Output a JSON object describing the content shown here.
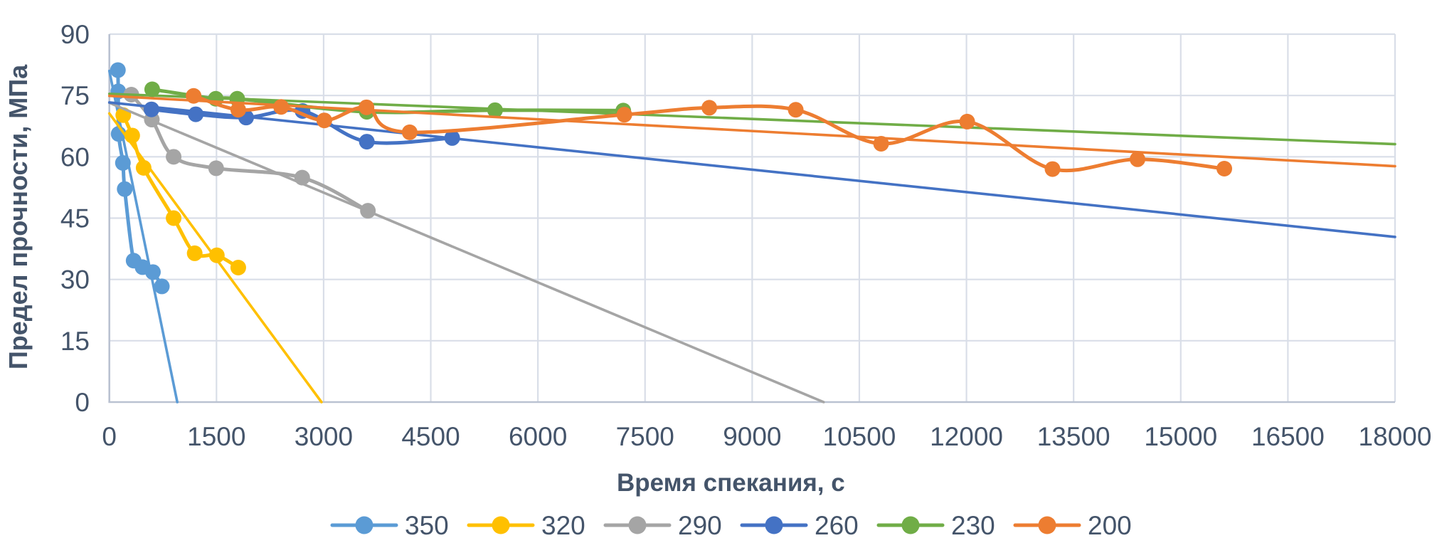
{
  "chart_data": {
    "type": "scatter",
    "title": "",
    "xlabel": "Время спекания, с",
    "ylabel": "Предел прочности, МПа",
    "xlim": [
      0,
      18000
    ],
    "ylim": [
      0,
      90
    ],
    "x_ticks": [
      0,
      1500,
      3000,
      4500,
      6000,
      7500,
      9000,
      10500,
      12000,
      13500,
      15000,
      16500,
      18000
    ],
    "y_ticks": [
      0,
      15,
      30,
      45,
      60,
      75,
      90
    ],
    "grid": true,
    "legend_position": "bottom",
    "marker_style": "circle",
    "line_style": "smooth-with-markers-plus-linear-trendline",
    "series": [
      {
        "name": "350",
        "color": "#5B9BD5",
        "points": [
          [
            120,
            81.2
          ],
          [
            125,
            76.0
          ],
          [
            130,
            65.6
          ],
          [
            190,
            58.5
          ],
          [
            215,
            52.1
          ],
          [
            340,
            34.6
          ],
          [
            465,
            33.0
          ],
          [
            610,
            31.8
          ],
          [
            735,
            28.3
          ]
        ],
        "trendline": [
          [
            0,
            81.0
          ],
          [
            951,
            0
          ]
        ]
      },
      {
        "name": "320",
        "color": "#FFC000",
        "points": [
          [
            195,
            70.2
          ],
          [
            320,
            65.2
          ],
          [
            480,
            57.3
          ],
          [
            900,
            45.0
          ],
          [
            1195,
            36.4
          ],
          [
            1505,
            35.9
          ],
          [
            1805,
            32.9
          ]
        ],
        "trendline": [
          [
            0,
            70.6
          ],
          [
            2970,
            0
          ]
        ]
      },
      {
        "name": "290",
        "color": "#A5A5A5",
        "points": [
          [
            308,
            75.2
          ],
          [
            595,
            69.1
          ],
          [
            900,
            60.0
          ],
          [
            1495,
            57.2
          ],
          [
            2700,
            54.9
          ],
          [
            3620,
            46.8
          ]
        ],
        "trendline": [
          [
            0,
            73.2
          ],
          [
            10000,
            0
          ]
        ]
      },
      {
        "name": "260",
        "color": "#4472C4",
        "points": [
          [
            590,
            71.6
          ],
          [
            1210,
            70.4
          ],
          [
            1915,
            69.6
          ],
          [
            2705,
            71.2
          ],
          [
            3605,
            63.7
          ],
          [
            4800,
            64.6
          ]
        ],
        "trendline": [
          [
            0,
            73.3
          ],
          [
            18000,
            40.4
          ]
        ]
      },
      {
        "name": "230",
        "color": "#70AD47",
        "points": [
          [
            600,
            76.5
          ],
          [
            1490,
            74.2
          ],
          [
            1790,
            74.2
          ],
          [
            3605,
            71.0
          ],
          [
            5400,
            71.4
          ],
          [
            7195,
            71.3
          ]
        ],
        "trendline": [
          [
            0,
            75.4
          ],
          [
            18000,
            63.1
          ]
        ]
      },
      {
        "name": "200",
        "color": "#ED7D31",
        "points": [
          [
            1180,
            74.9
          ],
          [
            1805,
            71.5
          ],
          [
            2405,
            72.2
          ],
          [
            3010,
            68.9
          ],
          [
            3600,
            72.1
          ],
          [
            4205,
            66.0
          ],
          [
            7210,
            70.3
          ],
          [
            8400,
            72.0
          ],
          [
            9610,
            71.5
          ],
          [
            10805,
            63.2
          ],
          [
            12010,
            68.6
          ],
          [
            13205,
            57.0
          ],
          [
            14395,
            59.4
          ],
          [
            15610,
            57.1
          ]
        ],
        "trendline": [
          [
            0,
            74.9
          ],
          [
            18000,
            57.7
          ]
        ]
      }
    ],
    "legend_items": [
      "350",
      "320",
      "290",
      "260",
      "230",
      "200"
    ]
  },
  "style": {
    "text_color": "#44546A",
    "grid_color": "#D9DEE8",
    "axis_color": "#BAC2D1",
    "background": "#FFFFFF"
  }
}
